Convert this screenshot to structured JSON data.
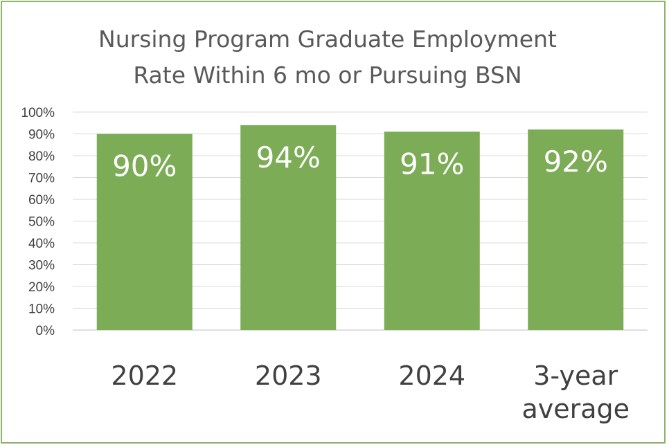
{
  "chart_data": {
    "type": "bar",
    "title_lines": [
      "Nursing Program Graduate Employment",
      "Rate Within 6 mo or Pursuing BSN"
    ],
    "categories": [
      [
        "2022"
      ],
      [
        "2023"
      ],
      [
        "2024"
      ],
      [
        "3-year",
        "average"
      ]
    ],
    "values": [
      90,
      94,
      91,
      92
    ],
    "data_labels": [
      "90%",
      "94%",
      "91%",
      "92%"
    ],
    "ylim": [
      0,
      100
    ],
    "yticks": [
      0,
      10,
      20,
      30,
      40,
      50,
      60,
      70,
      80,
      90,
      100
    ],
    "ytick_labels": [
      "0%",
      "10%",
      "20%",
      "30%",
      "40%",
      "50%",
      "60%",
      "70%",
      "80%",
      "90%",
      "100%"
    ],
    "grid": true,
    "legend": "none",
    "colors": {
      "bar": "#7cac55",
      "frame": "#8db26a",
      "gridline": "#d9d9d9",
      "axis_text": "#404040",
      "title_text": "#595959"
    }
  }
}
